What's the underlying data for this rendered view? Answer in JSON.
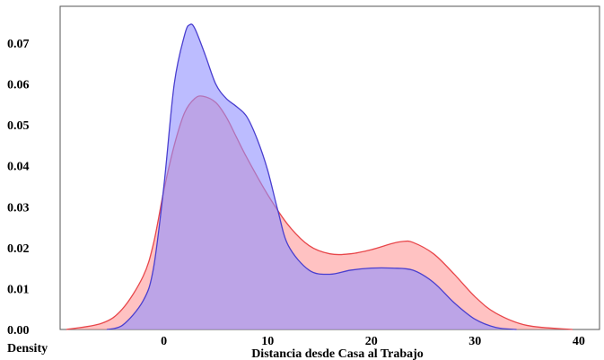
{
  "chart_data": {
    "type": "area",
    "xlabel": "Distancia desde Casa al Trabajo",
    "ylabel": "Density",
    "xlim": [
      -10,
      42
    ],
    "ylim": [
      0,
      0.079
    ],
    "xticks": [
      0,
      10,
      20,
      30,
      40
    ],
    "xtick_labels": [
      "0",
      "10",
      "20",
      "30",
      "40"
    ],
    "yticks": [
      0,
      0.01,
      0.02,
      0.03,
      0.04,
      0.05,
      0.06,
      0.07
    ],
    "ytick_labels": [
      "0.00",
      "0.01",
      "0.02",
      "0.03",
      "0.04",
      "0.05",
      "0.06",
      "0.07"
    ],
    "grid": false,
    "legend": false,
    "series": [
      {
        "color": "#e8474b",
        "fill": "#ff9999",
        "x": [
          -9.4,
          -6,
          -4,
          -2,
          -1,
          0,
          1,
          2,
          3,
          3.8,
          5,
          6,
          7,
          8,
          10,
          12,
          14,
          16,
          18,
          20,
          22,
          23,
          24,
          26,
          28,
          30,
          32,
          35,
          39.4
        ],
        "y": [
          0.0,
          0.0015,
          0.005,
          0.013,
          0.021,
          0.034,
          0.045,
          0.053,
          0.0565,
          0.057,
          0.0555,
          0.052,
          0.047,
          0.042,
          0.033,
          0.0255,
          0.0205,
          0.0185,
          0.0185,
          0.0195,
          0.021,
          0.0215,
          0.0213,
          0.0185,
          0.0135,
          0.008,
          0.004,
          0.001,
          0.0
        ]
      },
      {
        "color": "#4a3fcf",
        "fill": "#8f8fff",
        "x": [
          -5.5,
          -4,
          -2,
          -1,
          0,
          1,
          2,
          2.5,
          3,
          4,
          5,
          6,
          7,
          8,
          9,
          10,
          11,
          12,
          14,
          16,
          18,
          20,
          22,
          24,
          26,
          28,
          30,
          32,
          34
        ],
        "y": [
          0.0,
          0.001,
          0.007,
          0.015,
          0.035,
          0.06,
          0.072,
          0.0745,
          0.0735,
          0.067,
          0.06,
          0.0565,
          0.0545,
          0.052,
          0.0465,
          0.039,
          0.029,
          0.0205,
          0.0145,
          0.0135,
          0.0145,
          0.015,
          0.015,
          0.0145,
          0.0115,
          0.0065,
          0.0025,
          0.0005,
          0.0
        ]
      }
    ]
  }
}
